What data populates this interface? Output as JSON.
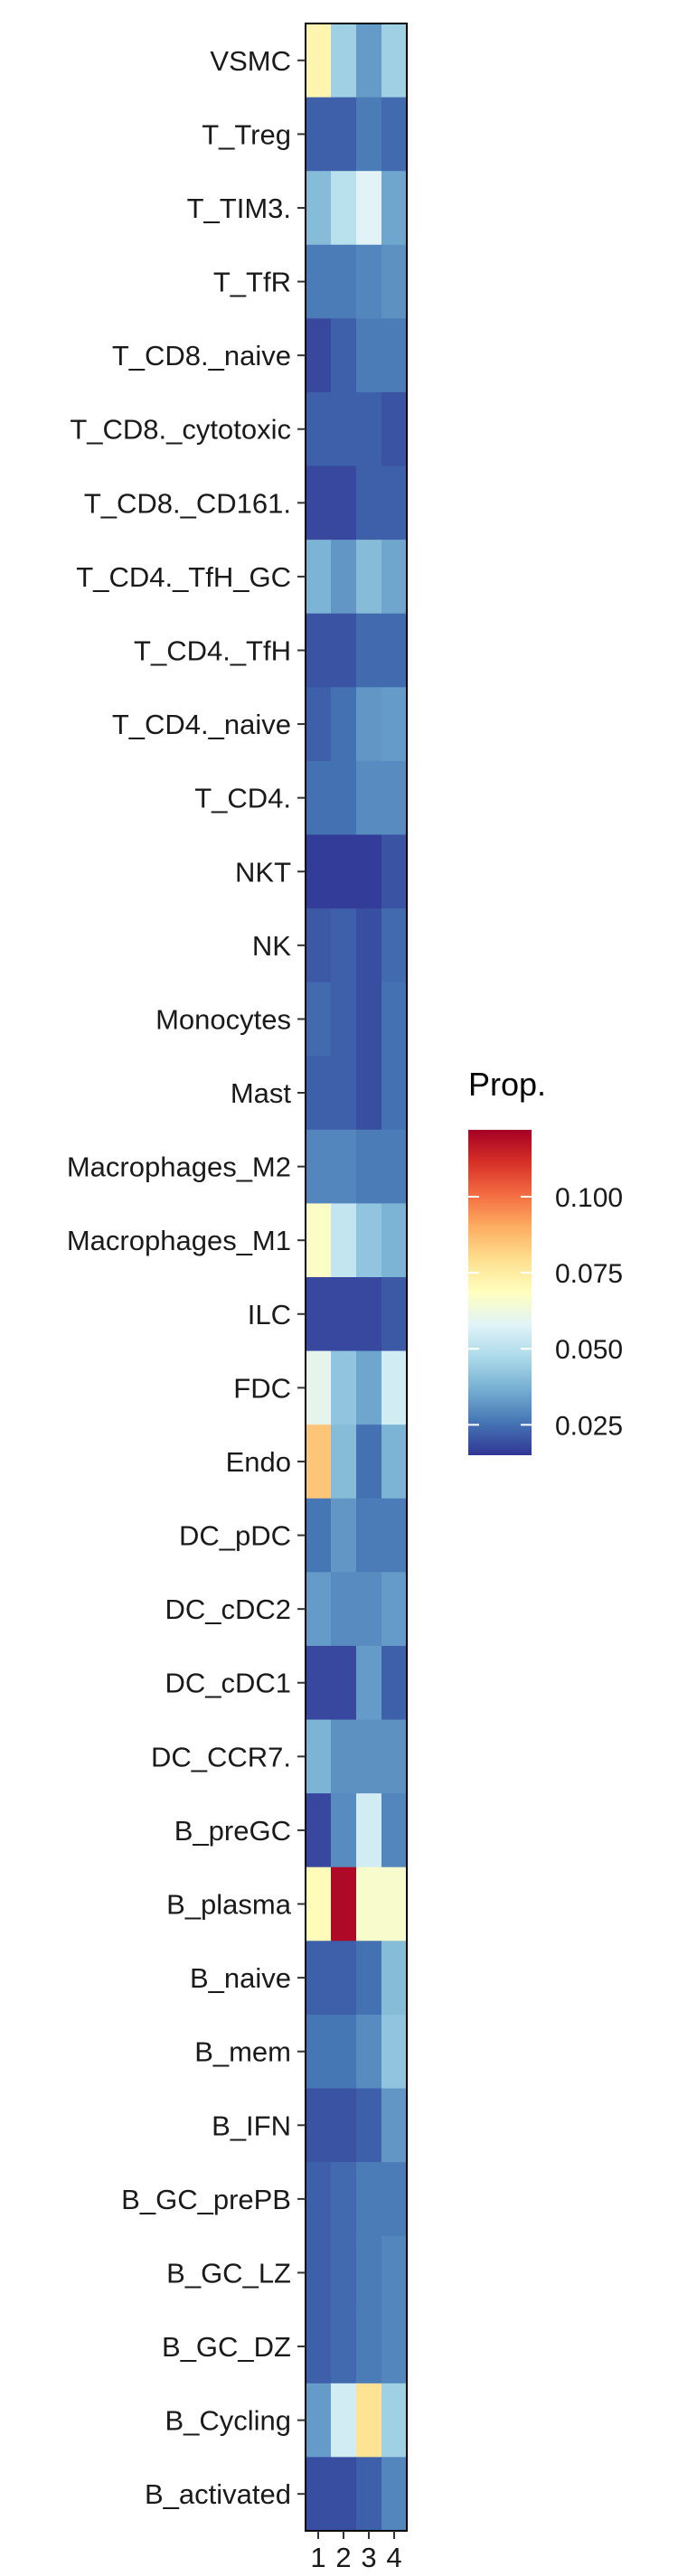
{
  "chart_data": {
    "type": "heatmap",
    "title": "",
    "xlabel": "",
    "ylabel": "",
    "x": [
      "1",
      "2",
      "3",
      "4"
    ],
    "rows": [
      {
        "name": "VSMC",
        "values": [
          0.072,
          0.045,
          0.033,
          0.045
        ]
      },
      {
        "name": "T_Treg",
        "values": [
          0.022,
          0.022,
          0.027,
          0.024
        ]
      },
      {
        "name": "T_TIM3.",
        "values": [
          0.04,
          0.05,
          0.058,
          0.035
        ]
      },
      {
        "name": "T_TfR",
        "values": [
          0.027,
          0.027,
          0.029,
          0.031
        ]
      },
      {
        "name": "T_CD8._naive",
        "values": [
          0.018,
          0.022,
          0.027,
          0.027
        ]
      },
      {
        "name": "T_CD8._cytotoxic",
        "values": [
          0.022,
          0.022,
          0.022,
          0.02
        ]
      },
      {
        "name": "T_CD8._CD161.",
        "values": [
          0.018,
          0.018,
          0.022,
          0.022
        ]
      },
      {
        "name": "T_CD4._TfH_GC",
        "values": [
          0.038,
          0.032,
          0.04,
          0.035
        ]
      },
      {
        "name": "T_CD4._TfH",
        "values": [
          0.02,
          0.02,
          0.024,
          0.024
        ]
      },
      {
        "name": "T_CD4._naive",
        "values": [
          0.022,
          0.025,
          0.032,
          0.033
        ]
      },
      {
        "name": "T_CD4.",
        "values": [
          0.025,
          0.025,
          0.03,
          0.03
        ]
      },
      {
        "name": "NKT",
        "values": [
          0.016,
          0.016,
          0.016,
          0.02
        ]
      },
      {
        "name": "NK",
        "values": [
          0.021,
          0.022,
          0.019,
          0.024
        ]
      },
      {
        "name": "Monocytes",
        "values": [
          0.024,
          0.022,
          0.019,
          0.025
        ]
      },
      {
        "name": "Mast",
        "values": [
          0.022,
          0.022,
          0.019,
          0.025
        ]
      },
      {
        "name": "Macrophages_M2",
        "values": [
          0.029,
          0.029,
          0.027,
          0.027
        ]
      },
      {
        "name": "Macrophages_M1",
        "values": [
          0.067,
          0.052,
          0.042,
          0.038
        ]
      },
      {
        "name": "ILC",
        "values": [
          0.018,
          0.018,
          0.018,
          0.021
        ]
      },
      {
        "name": "FDC",
        "values": [
          0.06,
          0.042,
          0.035,
          0.055
        ]
      },
      {
        "name": "Endo",
        "values": [
          0.085,
          0.04,
          0.025,
          0.038
        ]
      },
      {
        "name": "DC_pDC",
        "values": [
          0.026,
          0.032,
          0.027,
          0.027
        ]
      },
      {
        "name": "DC_cDC2",
        "values": [
          0.033,
          0.03,
          0.03,
          0.033
        ]
      },
      {
        "name": "DC_cDC1",
        "values": [
          0.018,
          0.018,
          0.033,
          0.022
        ]
      },
      {
        "name": "DC_CCR7.",
        "values": [
          0.038,
          0.031,
          0.031,
          0.031
        ]
      },
      {
        "name": "B_preGC",
        "values": [
          0.018,
          0.03,
          0.055,
          0.029
        ]
      },
      {
        "name": "B_plasma",
        "values": [
          0.07,
          0.12,
          0.066,
          0.066
        ]
      },
      {
        "name": "B_naive",
        "values": [
          0.022,
          0.022,
          0.025,
          0.04
        ]
      },
      {
        "name": "B_mem",
        "values": [
          0.026,
          0.026,
          0.03,
          0.042
        ]
      },
      {
        "name": "B_IFN",
        "values": [
          0.02,
          0.02,
          0.022,
          0.032
        ]
      },
      {
        "name": "B_GC_prePB",
        "values": [
          0.022,
          0.024,
          0.027,
          0.027
        ]
      },
      {
        "name": "B_GC_LZ",
        "values": [
          0.022,
          0.024,
          0.027,
          0.029
        ]
      },
      {
        "name": "B_GC_DZ",
        "values": [
          0.022,
          0.024,
          0.027,
          0.029
        ]
      },
      {
        "name": "B_Cycling",
        "values": [
          0.033,
          0.055,
          0.078,
          0.045
        ]
      },
      {
        "name": "B_activated",
        "values": [
          0.019,
          0.019,
          0.022,
          0.029
        ]
      }
    ],
    "legend": {
      "title": "Prop.",
      "ticks": [
        "0.025",
        "0.050",
        "0.075",
        "0.100"
      ],
      "tick_values": [
        0.025,
        0.05,
        0.075,
        0.1
      ],
      "min": 0.015,
      "max": 0.122,
      "placement": "right"
    },
    "colorscale": [
      "#313695",
      "#4575b4",
      "#74add1",
      "#abd9e9",
      "#e0f3f8",
      "#ffffbf",
      "#fee090",
      "#fdae61",
      "#f46d43",
      "#d73027",
      "#a50026"
    ]
  }
}
